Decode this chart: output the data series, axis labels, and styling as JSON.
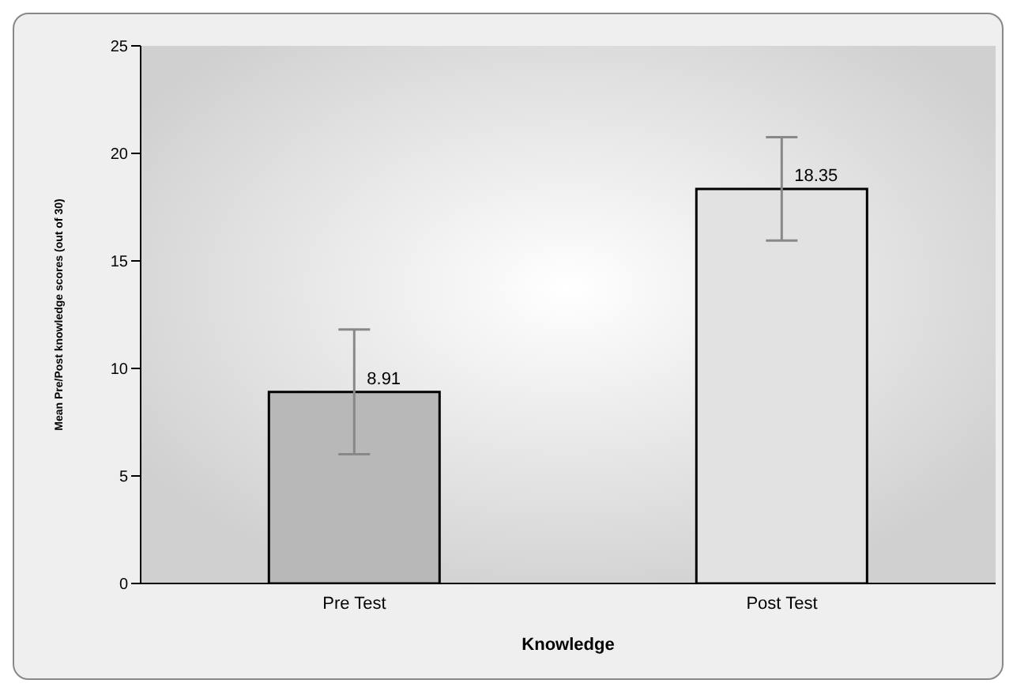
{
  "chart_data": {
    "type": "bar",
    "xlabel": "Knowledge",
    "ylabel": "Mean Pre/Post knowledge scores (out of 30)",
    "categories": [
      "Pre Test",
      "Post Test"
    ],
    "values": [
      8.91,
      18.35
    ],
    "colors": [
      "#b8b8b8",
      "#e2e2e2"
    ],
    "errors": [
      2.9,
      2.4
    ],
    "data_labels": true,
    "ylim": [
      0,
      25
    ],
    "yticks": [
      0,
      5,
      10,
      15,
      20,
      25
    ],
    "grid": false,
    "legend": false
  }
}
